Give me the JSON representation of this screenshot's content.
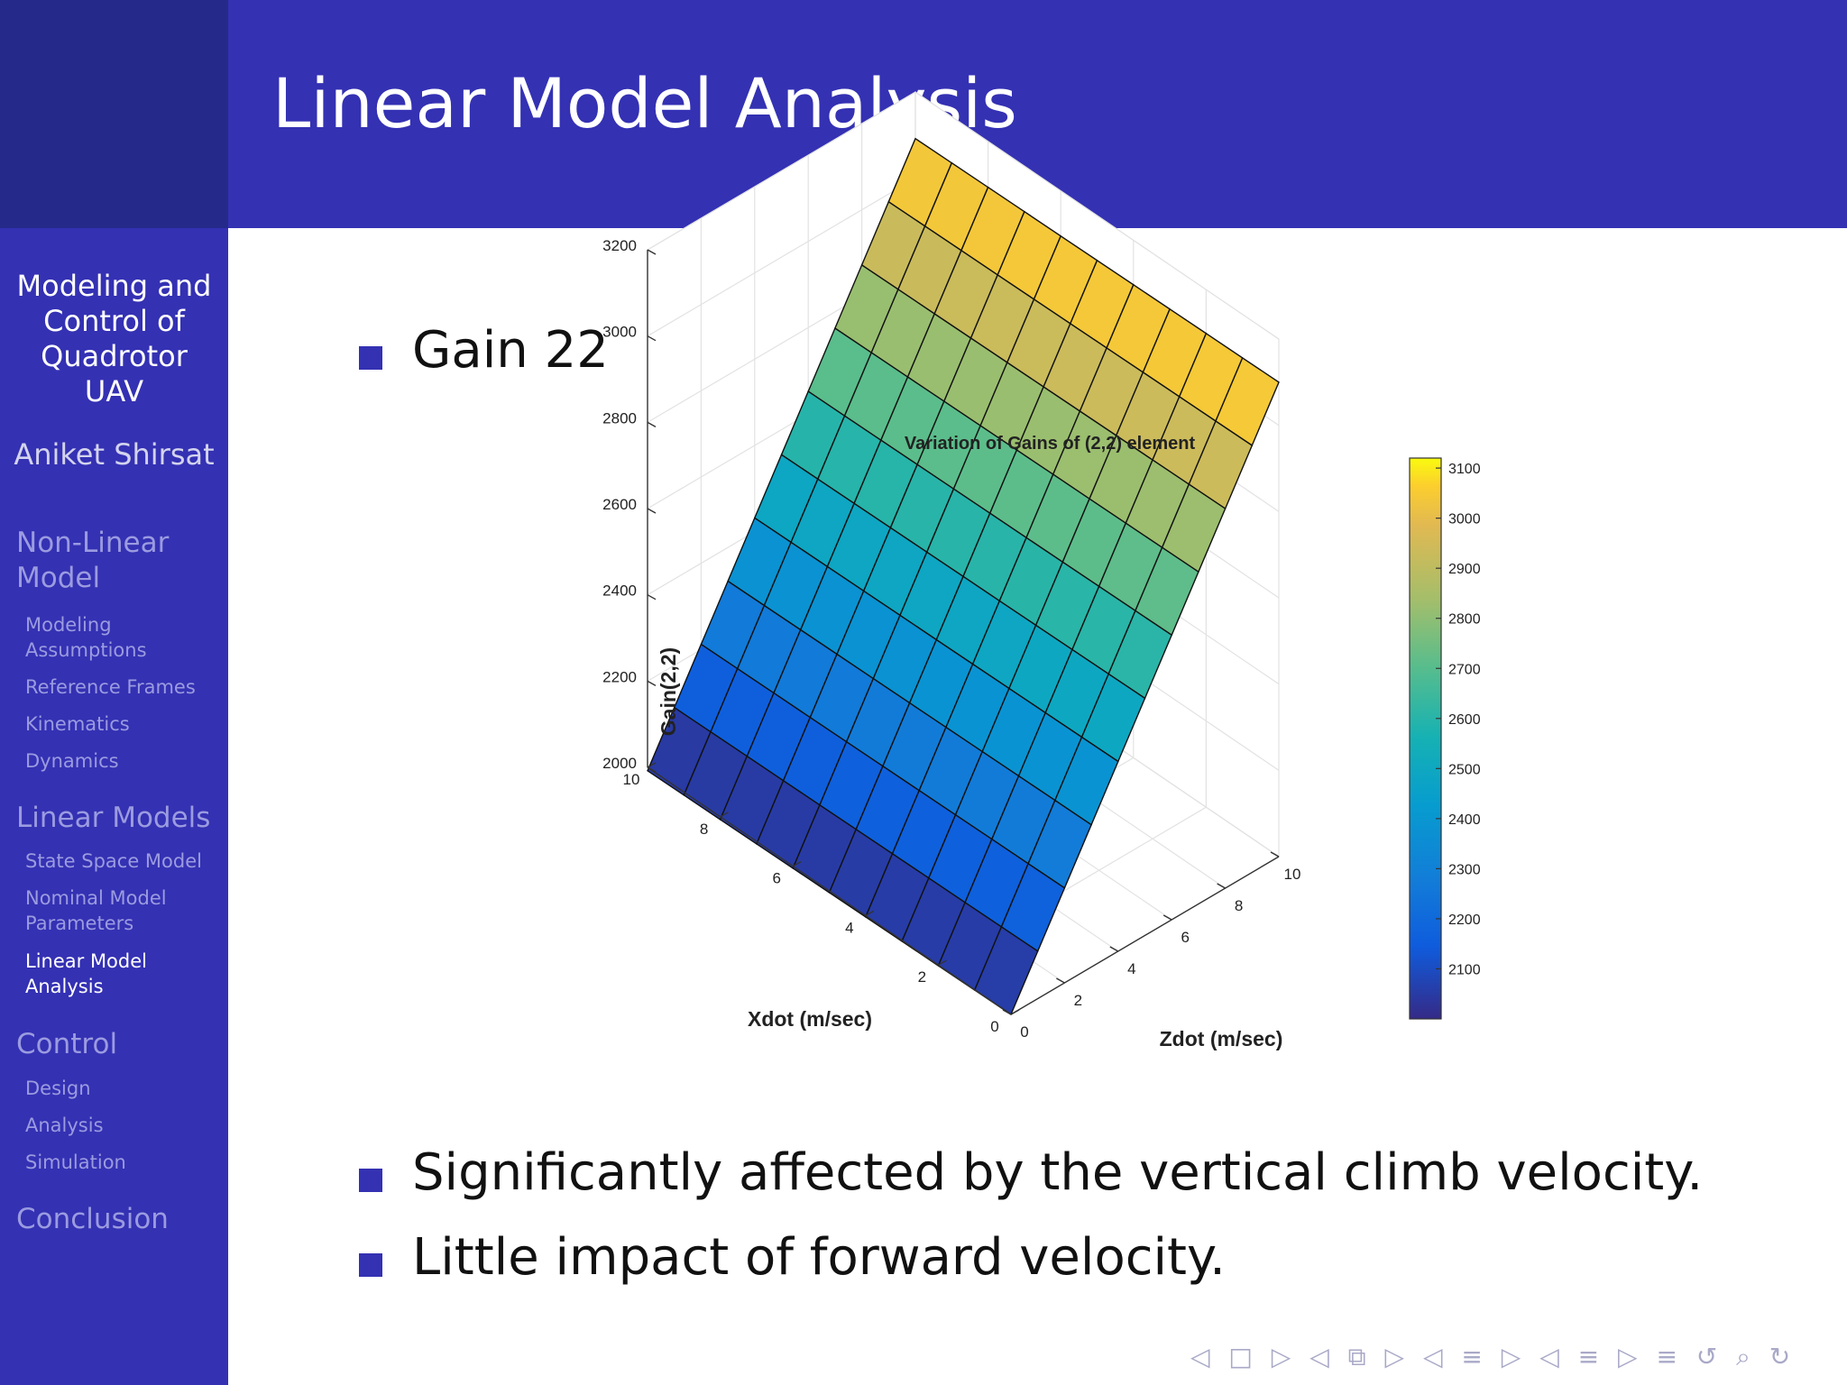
{
  "slide": {
    "title": "Linear Model Analysis"
  },
  "sidebar": {
    "title_lines": [
      "Modeling and",
      "Control of",
      "Quadrotor",
      "UAV"
    ],
    "author": "Aniket Shirsat",
    "sections": [
      {
        "label_lines": [
          "Non-Linear",
          "Model"
        ],
        "items": [
          {
            "lines": [
              "Modeling",
              "Assumptions"
            ]
          },
          {
            "lines": [
              "Reference Frames"
            ]
          },
          {
            "lines": [
              "Kinematics"
            ]
          },
          {
            "lines": [
              "Dynamics"
            ]
          }
        ]
      },
      {
        "label_lines": [
          "Linear Models"
        ],
        "items": [
          {
            "lines": [
              "State Space Model"
            ]
          },
          {
            "lines": [
              "Nominal Model",
              "Parameters"
            ]
          },
          {
            "lines": [
              "Linear Model",
              "Analysis"
            ],
            "current": true
          }
        ]
      },
      {
        "label_lines": [
          "Control"
        ],
        "items": [
          {
            "lines": [
              "Design"
            ]
          },
          {
            "lines": [
              "Analysis"
            ]
          },
          {
            "lines": [
              "Simulation"
            ]
          }
        ]
      },
      {
        "label_lines": [
          "Conclusion"
        ],
        "items": []
      }
    ]
  },
  "content": {
    "bullet1": "Gain 22",
    "bullet2": "Significantly affected by the vertical climb velocity.",
    "bullet3": "Little impact of forward velocity."
  },
  "chart_data": {
    "type": "surface",
    "title": "Variation of Gains of (2,2) element",
    "xlabel": "Xdot (m/sec)",
    "ylabel": "Zdot (m/sec)",
    "zlabel": "Gain(2,2)",
    "x_ticks": [
      0,
      2,
      4,
      6,
      8,
      10
    ],
    "y_ticks": [
      0,
      2,
      4,
      6,
      8,
      10
    ],
    "z_ticks": [
      2000,
      2200,
      2400,
      2600,
      2800,
      3000,
      3200
    ],
    "x_grid": [
      0,
      1,
      2,
      3,
      4,
      5,
      6,
      7,
      8,
      9,
      10
    ],
    "y_grid": [
      0,
      1,
      2,
      3,
      4,
      5,
      6,
      7,
      8,
      9,
      10
    ],
    "surface_z_at_x0": [
      2000,
      2110,
      2220,
      2330,
      2440,
      2550,
      2660,
      2770,
      2880,
      2990,
      3100
    ],
    "note_z": "z rises ~110 per unit of Zdot; near-constant along Xdot",
    "xlim": [
      0,
      10
    ],
    "ylim": [
      0,
      10
    ],
    "zlim": [
      2000,
      3200
    ],
    "colorbar": {
      "ticks": [
        2100,
        2200,
        2300,
        2400,
        2500,
        2600,
        2700,
        2800,
        2900,
        3000,
        3100
      ],
      "range": [
        2000,
        3120
      ]
    },
    "grid": true
  },
  "nav": {
    "symbols": "◁ □ ▷ ◁ ⧉ ▷ ◁ ≡ ▷ ◁ ≡ ▷ ≡ ↺ ⌕ ↻"
  }
}
